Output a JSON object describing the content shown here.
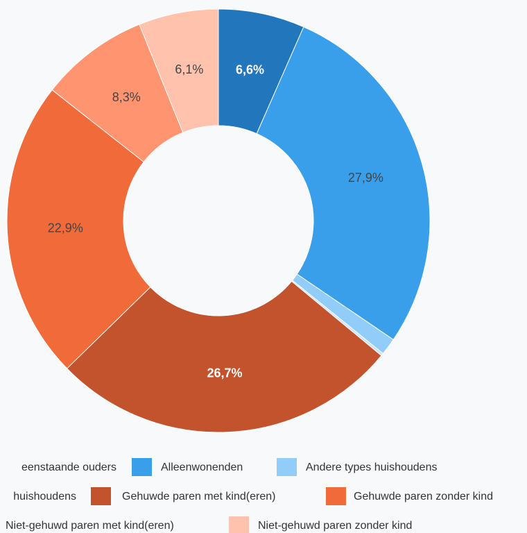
{
  "chart_data": {
    "type": "donut",
    "categories": [
      "eenstaande ouders",
      "Alleenwonenden",
      "Andere types huishoudens",
      "huishoudens",
      "Gehuwde paren met kind(eren)",
      "Gehuwde paren zonder kind",
      "Niet-gehuwd paren met kind(eren)",
      "Niet-gehuwd paren zonder kind"
    ],
    "values": [
      6.6,
      27.9,
      1.3,
      0.2,
      26.7,
      22.9,
      8.3,
      6.1
    ],
    "value_labels": [
      "6,6%",
      "27,9%",
      null,
      null,
      "26,7%",
      "22,9%",
      "8,3%",
      "6,1%"
    ],
    "colors": [
      "#2276bb",
      "#3a9fea",
      "#92ccf9",
      "#c9e3fb",
      "#c2532d",
      "#f06a3a",
      "#ff9470",
      "#ffc2ad"
    ],
    "label_colors": [
      "#ffffff",
      "#444444",
      "#444444",
      "#444444",
      "#ffffff",
      "#444444",
      "#444444",
      "#444444"
    ]
  }
}
